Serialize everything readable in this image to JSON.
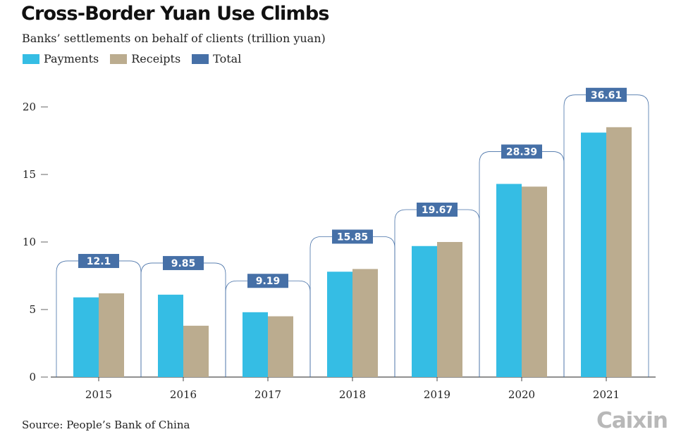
{
  "chart_data": {
    "type": "bar",
    "title": "Cross-Border Yuan Use Climbs",
    "subtitle": "Banks’ settlements on behalf of clients (trillion yuan)",
    "categories": [
      "2015",
      "2016",
      "2017",
      "2018",
      "2019",
      "2020",
      "2021"
    ],
    "series": [
      {
        "name": "Payments",
        "color": "#35bde4",
        "values": [
          5.9,
          6.1,
          4.8,
          7.8,
          9.7,
          14.3,
          18.1
        ]
      },
      {
        "name": "Receipts",
        "color": "#bbac8f",
        "values": [
          6.2,
          3.8,
          4.5,
          8.0,
          10.0,
          14.1,
          18.5
        ]
      }
    ],
    "totals": {
      "name": "Total",
      "color": "#4670a7",
      "values": [
        "12.1",
        "9.85",
        "9.19",
        "15.85",
        "19.67",
        "28.39",
        "36.61"
      ]
    },
    "yticks": [
      0,
      5,
      10,
      15,
      20
    ],
    "ylim": [
      0,
      25
    ],
    "xlabel": "",
    "ylabel": ""
  },
  "source": "Source: People’s Bank of China",
  "logo": "Caixin"
}
